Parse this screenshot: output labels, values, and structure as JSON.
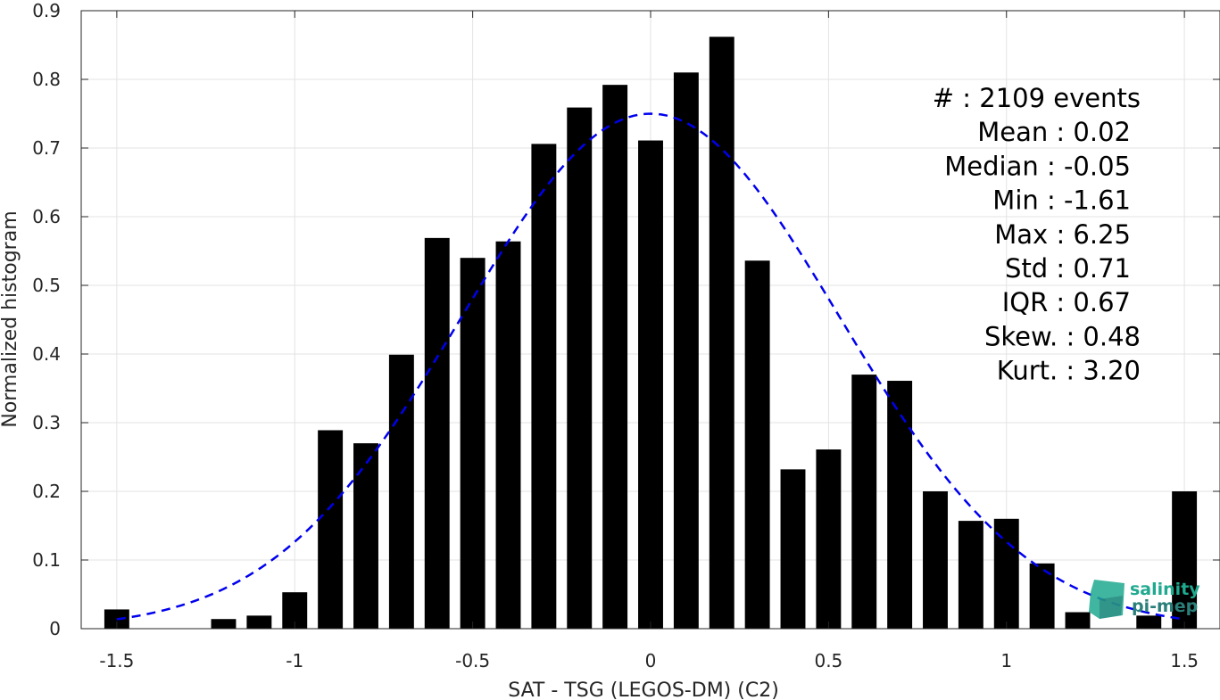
{
  "chart_data": {
    "type": "bar",
    "xlabel": "SAT - TSG (LEGOS-DM) (C2)",
    "ylabel": "Normalized histogram",
    "xlim": [
      -1.6,
      1.6
    ],
    "ylim": [
      0,
      0.9
    ],
    "xticks": [
      -1.5,
      -1,
      -0.5,
      0,
      0.5,
      1,
      1.5
    ],
    "xtick_labels": [
      "-1.5",
      "-1",
      "-0.5",
      "0",
      "0.5",
      "1",
      "1.5"
    ],
    "yticks": [
      0,
      0.1,
      0.2,
      0.3,
      0.4,
      0.5,
      0.6,
      0.7,
      0.8,
      0.9
    ],
    "ytick_labels": [
      "0",
      "0.1",
      "0.2",
      "0.3",
      "0.4",
      "0.5",
      "0.6",
      "0.7",
      "0.8",
      "0.9"
    ],
    "grid": true,
    "bar_color": "#000000",
    "bar_width": 0.07,
    "bars": [
      {
        "x": -1.5,
        "y": 0.028
      },
      {
        "x": -1.4,
        "y": 0.0
      },
      {
        "x": -1.3,
        "y": 0.0
      },
      {
        "x": -1.2,
        "y": 0.014
      },
      {
        "x": -1.1,
        "y": 0.019
      },
      {
        "x": -1.0,
        "y": 0.053
      },
      {
        "x": -0.9,
        "y": 0.289
      },
      {
        "x": -0.8,
        "y": 0.27
      },
      {
        "x": -0.7,
        "y": 0.399
      },
      {
        "x": -0.6,
        "y": 0.569
      },
      {
        "x": -0.5,
        "y": 0.54
      },
      {
        "x": -0.4,
        "y": 0.564
      },
      {
        "x": -0.3,
        "y": 0.706
      },
      {
        "x": -0.2,
        "y": 0.759
      },
      {
        "x": -0.1,
        "y": 0.792
      },
      {
        "x": 0.0,
        "y": 0.711
      },
      {
        "x": 0.1,
        "y": 0.81
      },
      {
        "x": 0.2,
        "y": 0.862
      },
      {
        "x": 0.3,
        "y": 0.536
      },
      {
        "x": 0.4,
        "y": 0.232
      },
      {
        "x": 0.5,
        "y": 0.261
      },
      {
        "x": 0.6,
        "y": 0.37
      },
      {
        "x": 0.7,
        "y": 0.361
      },
      {
        "x": 0.8,
        "y": 0.2
      },
      {
        "x": 0.9,
        "y": 0.157
      },
      {
        "x": 1.0,
        "y": 0.16
      },
      {
        "x": 1.1,
        "y": 0.095
      },
      {
        "x": 1.2,
        "y": 0.024
      },
      {
        "x": 1.3,
        "y": 0.0
      },
      {
        "x": 1.4,
        "y": 0.019
      },
      {
        "x": 1.5,
        "y": 0.2
      }
    ],
    "fit_curve": {
      "type": "gaussian",
      "mean": 0.0,
      "peak": 0.75,
      "sigma": 0.53,
      "x_range": [
        -1.5,
        1.5
      ],
      "color": "#0000ee",
      "style": "dashed"
    },
    "annotations": [
      "#  : 2109 events",
      "Mean : 0.02",
      "Median : -0.05",
      "Min : -1.61",
      "Max : 6.25",
      "Std : 0.71",
      "IQR : 0.67",
      "Skew. : 0.48",
      "Kurt. : 3.20"
    ]
  },
  "logo": {
    "line1": "salinity",
    "line2": "pi-mep",
    "color_primary": "#1fa98f",
    "color_secondary": "#2a7f7a"
  }
}
